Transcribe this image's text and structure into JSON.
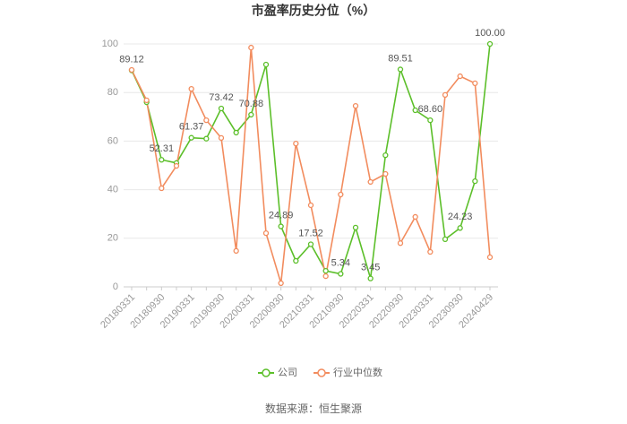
{
  "chart_data": {
    "type": "line",
    "title": "市盈率历史分位（%）",
    "categories": [
      "20180331",
      null,
      "20180930",
      null,
      "20190331",
      null,
      "20190930",
      null,
      "20200331",
      null,
      "20200930",
      null,
      "20210331",
      null,
      "20210930",
      null,
      "20220331",
      null,
      "20220930",
      null,
      "20230331",
      null,
      "20230930",
      null,
      "20240429"
    ],
    "series": [
      {
        "name": "公司",
        "color": "#5cbf2a",
        "values": [
          89.12,
          76,
          52.31,
          51,
          61.37,
          61,
          73.42,
          63.5,
          70.88,
          91.5,
          24.89,
          10.7,
          17.52,
          6.6,
          5.34,
          24.4,
          3.45,
          54.2,
          89.51,
          72.7,
          68.6,
          19.6,
          24.23,
          43.5,
          100
        ],
        "value_labels": [
          "89.12",
          null,
          "52.31",
          null,
          "61.37",
          null,
          "73.42",
          null,
          "70.88",
          null,
          "24.89",
          null,
          "17.52",
          null,
          "5.34",
          null,
          "3.45",
          null,
          "89.51",
          null,
          "68.60",
          null,
          "24.23",
          null,
          "100.00"
        ]
      },
      {
        "name": "行业中位数",
        "color": "#f28c5e",
        "values": [
          89.3,
          76.8,
          40.6,
          49.8,
          81.5,
          68.6,
          61.3,
          14.8,
          98.5,
          22.1,
          1.5,
          59,
          33.6,
          4.4,
          38,
          74.5,
          43.2,
          46.5,
          18,
          28.8,
          14.4,
          79,
          86.7,
          83.8,
          12.2
        ]
      }
    ],
    "ylim": [
      0,
      100
    ],
    "yticks": [
      0,
      20,
      40,
      60,
      80,
      100
    ],
    "grid": true,
    "source": "数据来源：恒生聚源"
  }
}
